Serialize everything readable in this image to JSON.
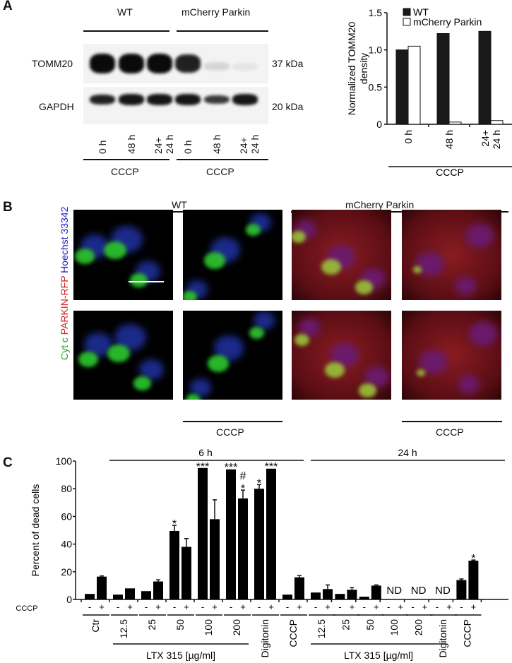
{
  "panel_labels": {
    "a": "A",
    "b": "B",
    "c": "C"
  },
  "panel_a": {
    "groups": [
      "WT",
      "mCherry Parkin"
    ],
    "proteins": [
      {
        "name": "TOMM20",
        "size": "37 kDa"
      },
      {
        "name": "GAPDH",
        "size": "20 kDa"
      }
    ],
    "lanes": [
      [
        "0 h"
      ],
      [
        "48 h"
      ],
      [
        "24+",
        "24 h"
      ],
      [
        "0 h"
      ],
      [
        "48 h"
      ],
      [
        "24+",
        "24 h"
      ]
    ],
    "treatment": "CCCP",
    "tomm20_band_intensity": [
      1.0,
      1.0,
      1.0,
      0.9,
      0.12,
      0.06
    ],
    "gapdh_band_intensity": [
      0.9,
      0.95,
      0.95,
      0.95,
      0.8,
      0.95
    ]
  },
  "chart_data": [
    {
      "type": "bar",
      "ylabel": [
        "Normalized TOMM20",
        "density"
      ],
      "ylim": [
        0,
        1.5
      ],
      "yticks": [
        "0",
        "0.5",
        "1.0",
        "1.5"
      ],
      "categories": [
        [
          "0 h"
        ],
        [
          "48 h"
        ],
        [
          "24+",
          "24 h"
        ]
      ],
      "group_label": "CCCP",
      "legend_placement": "top",
      "series": [
        {
          "name": "WT",
          "values": [
            1.0,
            1.22,
            1.25
          ],
          "color": "#1a1a1a"
        },
        {
          "name": "mCherry Parkin",
          "values": [
            1.05,
            0.03,
            0.05
          ],
          "color": "#ffffff"
        }
      ]
    },
    {
      "type": "bar",
      "ylabel": "Percent of dead cells",
      "ylim": [
        0,
        100
      ],
      "yticks": [
        "0",
        "20",
        "40",
        "60",
        "80",
        "100"
      ],
      "row_label": "CCCP",
      "signs": [
        "-",
        "+"
      ],
      "timepoints": [
        "6 h",
        "24 h"
      ],
      "compound_label": "LTX 315 [µg/ml]",
      "groups": [
        {
          "time": "6 h",
          "label": "Ctr",
          "values": [
            4,
            16.5
          ],
          "errors": [
            0.3,
            0.5
          ],
          "annot": [
            "",
            ""
          ]
        },
        {
          "time": "6 h",
          "label": "12.5",
          "values": [
            3.5,
            8
          ],
          "errors": [
            0.2,
            0.2
          ],
          "annot": [
            "",
            ""
          ]
        },
        {
          "time": "6 h",
          "label": "25",
          "values": [
            6,
            13
          ],
          "errors": [
            0.3,
            1.2
          ],
          "annot": [
            "",
            ""
          ]
        },
        {
          "time": "6 h",
          "label": "50",
          "values": [
            49.5,
            38
          ],
          "errors": [
            4,
            6
          ],
          "annot": [
            "*",
            ""
          ]
        },
        {
          "time": "6 h",
          "label": "100",
          "values": [
            95,
            58
          ],
          "errors": [
            0,
            14
          ],
          "annot": [
            "***",
            ""
          ]
        },
        {
          "time": "6 h",
          "label": "200",
          "values": [
            94,
            73
          ],
          "errors": [
            0.3,
            6
          ],
          "annot": [
            "***",
            "#\n*"
          ]
        },
        {
          "time": "6 h",
          "label": "Digitonin",
          "values": [
            80,
            94.5
          ],
          "errors": [
            3,
            0.3
          ],
          "annot": [
            "*",
            "***"
          ]
        },
        {
          "time": "6 h",
          "label": "CCCP",
          "values": [
            3.5,
            16
          ],
          "errors": [
            0.2,
            1.2
          ],
          "annot": [
            "",
            ""
          ]
        },
        {
          "time": "24 h",
          "label": "12.5",
          "values": [
            5,
            7.5
          ],
          "errors": [
            0.3,
            3
          ],
          "annot": [
            "",
            ""
          ]
        },
        {
          "time": "24 h",
          "label": "25",
          "values": [
            4,
            7
          ],
          "errors": [
            0.3,
            1.5
          ],
          "annot": [
            "",
            ""
          ]
        },
        {
          "time": "24 h",
          "label": "50",
          "values": [
            2,
            10
          ],
          "errors": [
            0.2,
            0.5
          ],
          "annot": [
            "",
            ""
          ]
        },
        {
          "time": "24 h",
          "label": "100",
          "values": [
            null,
            null
          ],
          "errors": [
            0,
            0
          ],
          "annot": [
            "ND",
            ""
          ]
        },
        {
          "time": "24 h",
          "label": "200",
          "values": [
            null,
            null
          ],
          "errors": [
            0,
            0
          ],
          "annot": [
            "ND",
            ""
          ]
        },
        {
          "time": "24 h",
          "label": "Digitonin",
          "values": [
            null,
            null
          ],
          "errors": [
            0,
            0
          ],
          "annot": [
            "ND",
            ""
          ]
        },
        {
          "time": "24 h",
          "label": "CCCP",
          "values": [
            14,
            28
          ],
          "errors": [
            0.8,
            0.5
          ],
          "annot": [
            "",
            "*"
          ]
        }
      ]
    }
  ],
  "panel_b": {
    "groups": [
      "WT",
      "mCherry Parkin"
    ],
    "stain_labels": [
      {
        "text": "Cyt c",
        "color": "#2a9a2a"
      },
      {
        "text": "PARKIN-RFP",
        "color": "#d42020"
      },
      {
        "text": "Hoechst 33342",
        "color": "#2020c0"
      }
    ],
    "treatment": "CCCP"
  }
}
